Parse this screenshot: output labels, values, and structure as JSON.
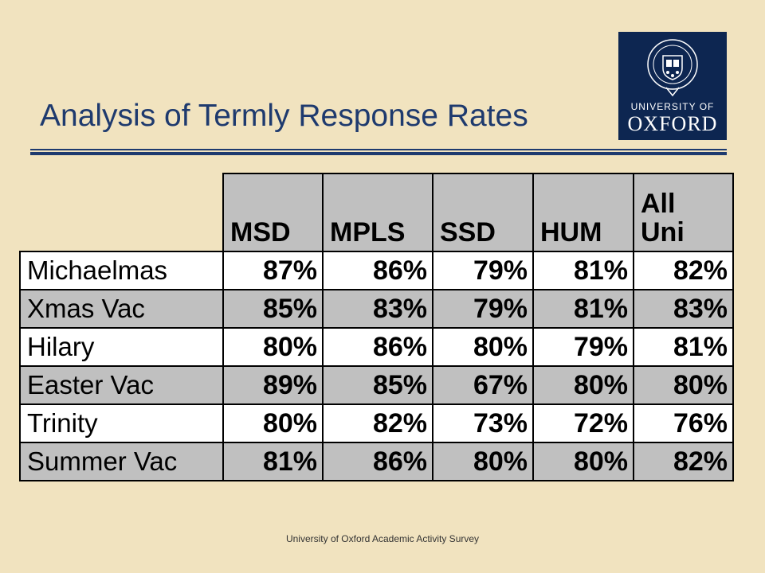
{
  "title": "Analysis of Termly Response Rates",
  "logo": {
    "line1": "UNIVERSITY OF",
    "line2": "OXFORD"
  },
  "table": {
    "columns": [
      "MSD",
      "MPLS",
      "SSD",
      "HUM",
      "All Uni"
    ],
    "column_lines": [
      [
        "MSD"
      ],
      [
        "MPLS"
      ],
      [
        "SSD"
      ],
      [
        "HUM"
      ],
      [
        "All",
        "Uni"
      ]
    ],
    "rows": [
      {
        "label": "Michaelmas",
        "values": [
          "87%",
          "86%",
          "79%",
          "81%",
          "82%"
        ]
      },
      {
        "label": "Xmas Vac",
        "values": [
          "85%",
          "83%",
          "79%",
          "81%",
          "83%"
        ]
      },
      {
        "label": "Hilary",
        "values": [
          "80%",
          "86%",
          "80%",
          "79%",
          "81%"
        ]
      },
      {
        "label": "Easter Vac",
        "values": [
          "89%",
          "85%",
          "67%",
          "80%",
          "80%"
        ]
      },
      {
        "label": "Trinity",
        "values": [
          "80%",
          "82%",
          "73%",
          "72%",
          "76%"
        ]
      },
      {
        "label": "Summer Vac",
        "values": [
          "81%",
          "86%",
          "80%",
          "80%",
          "82%"
        ]
      }
    ]
  },
  "footer": "University of Oxford Academic Activity Survey",
  "colors": {
    "background": "#f1e3bf",
    "title": "#1e3a6e",
    "logo": "#0d2651",
    "cell_grey": "#c0c0c0"
  }
}
